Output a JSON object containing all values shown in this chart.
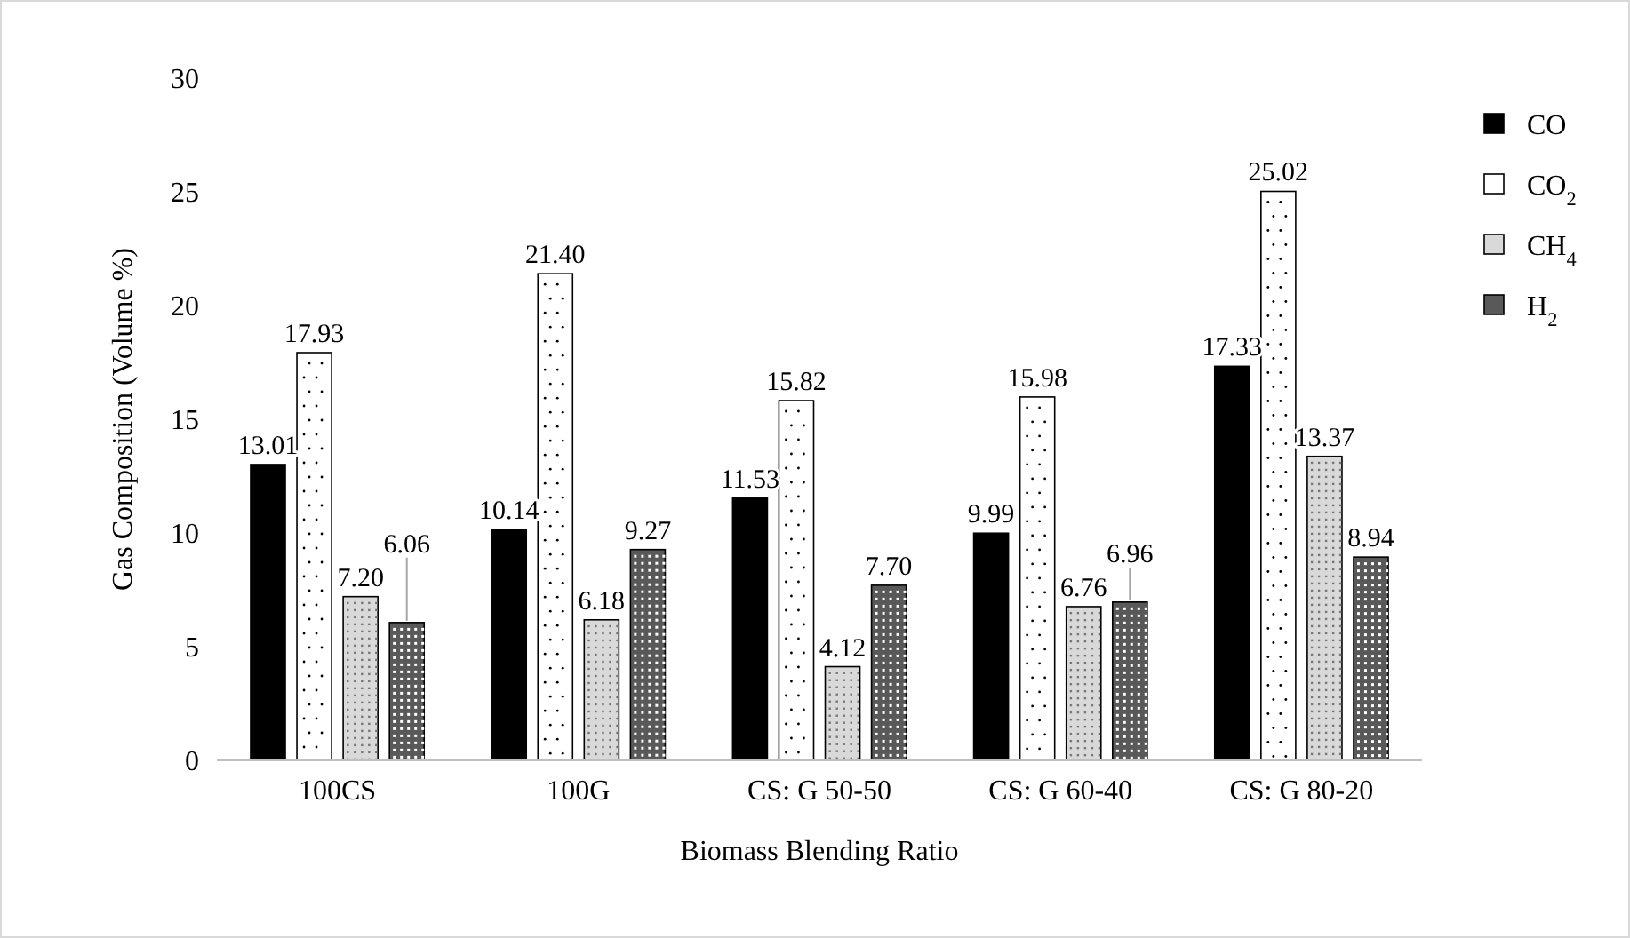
{
  "chart_data": {
    "type": "bar",
    "xlabel": "Biomass Blending Ratio",
    "ylabel": "Gas Composition (Volume %)",
    "categories": [
      "100CS",
      "100G",
      "CS: G 50-50",
      "CS: G 60-40",
      "CS: G 80-20"
    ],
    "ylim": [
      0,
      30
    ],
    "yticks": [
      0,
      5,
      10,
      15,
      20,
      25,
      30
    ],
    "grid": false,
    "legend": "right",
    "series": [
      {
        "name": "CO",
        "color": "#000000",
        "values": [
          13.01,
          10.14,
          11.53,
          9.99,
          17.33
        ],
        "value_labels": [
          "13.01",
          "10.14",
          "11.53",
          "9.99",
          "17.33"
        ]
      },
      {
        "name": "CO$_{2}$",
        "color": "#ffffff",
        "values": [
          17.93,
          21.4,
          15.82,
          15.98,
          25.02
        ],
        "value_labels": [
          "17.93",
          "21.40",
          "15.82",
          "15.98",
          "25.02"
        ]
      },
      {
        "name": "CH$_{4}$",
        "color": "#d9d9d9",
        "values": [
          7.2,
          6.18,
          4.12,
          6.76,
          13.37
        ],
        "value_labels": [
          "7.20",
          "6.18",
          "4.12",
          "6.76",
          "13.37"
        ]
      },
      {
        "name": "H$_{2}$",
        "color": "#595959",
        "values": [
          6.06,
          9.27,
          7.7,
          6.96,
          8.94
        ],
        "value_labels": [
          "6.06",
          "9.27",
          "7.70",
          "6.96",
          "8.94"
        ]
      }
    ]
  }
}
